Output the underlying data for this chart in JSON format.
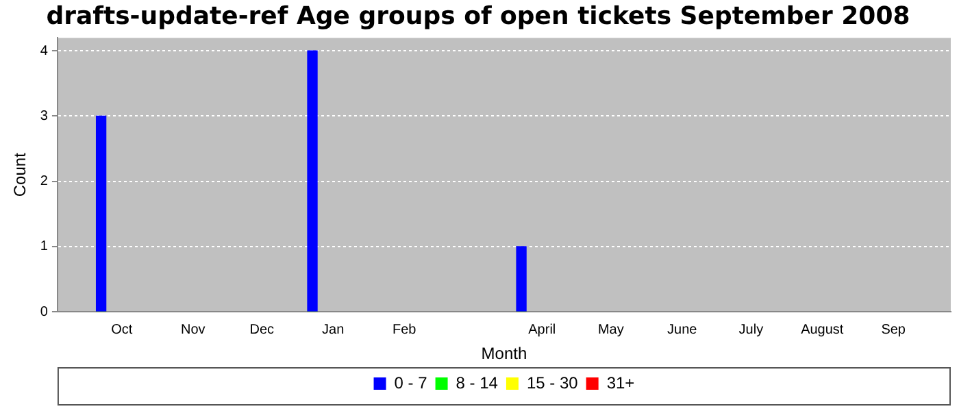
{
  "chart_data": {
    "type": "bar",
    "title": "drafts-update-ref Age groups of open tickets September 2008",
    "xlabel": "Month",
    "ylabel": "Count",
    "x": [
      "2007-10-06",
      "2008-01-06",
      "2008-04-06"
    ],
    "series": [
      {
        "name": "0 - 7",
        "color": "#0000ff",
        "values": [
          3,
          4,
          1
        ]
      },
      {
        "name": "8 - 14",
        "color": "#00ff00",
        "values": [
          0,
          0,
          0
        ]
      },
      {
        "name": "15 - 30",
        "color": "#ffff00",
        "values": [
          0,
          0,
          0
        ]
      },
      {
        "name": "31+",
        "color": "#ff0000",
        "values": [
          0,
          0,
          0
        ]
      }
    ],
    "xlim": [
      "2007-09-17",
      "2008-10-10"
    ],
    "xticks": [
      {
        "value": "2007-10-15",
        "label": "Oct"
      },
      {
        "value": "2007-11-15",
        "label": "Nov"
      },
      {
        "value": "2007-12-15",
        "label": "Dec"
      },
      {
        "value": "2008-01-15",
        "label": "Jan"
      },
      {
        "value": "2008-02-15",
        "label": "Feb"
      },
      {
        "value": "2008-04-15",
        "label": "April"
      },
      {
        "value": "2008-05-15",
        "label": "May"
      },
      {
        "value": "2008-06-15",
        "label": "June"
      },
      {
        "value": "2008-07-15",
        "label": "July"
      },
      {
        "value": "2008-08-15",
        "label": "August"
      },
      {
        "value": "2008-09-15",
        "label": "Sep"
      }
    ],
    "ylim": [
      0,
      4.2
    ],
    "yticks": [
      0,
      1,
      2,
      3,
      4
    ],
    "grid": "y",
    "legend": "bottom"
  }
}
